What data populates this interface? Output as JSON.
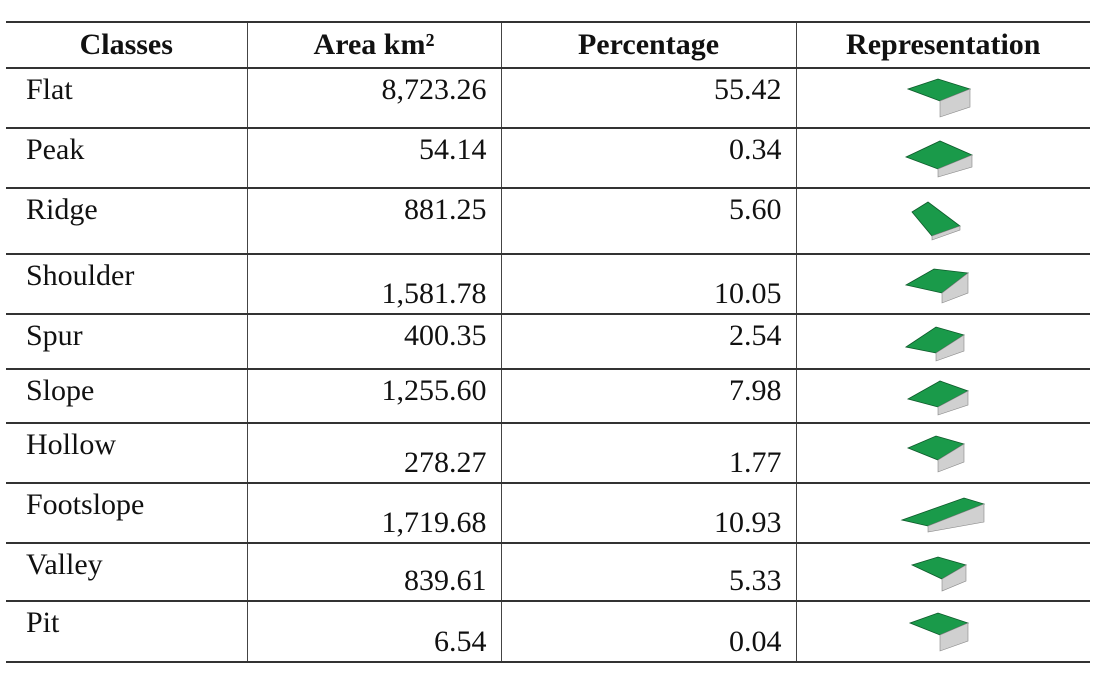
{
  "table": {
    "headers": [
      "Classes",
      "Area km²",
      "Percentage",
      "Representation"
    ],
    "rows": [
      {
        "class": "Flat",
        "area": "8,723.26",
        "percentage": "55.42",
        "icon": "flat-landform-icon"
      },
      {
        "class": "Peak",
        "area": "54.14",
        "percentage": "0.34",
        "icon": "peak-landform-icon"
      },
      {
        "class": "Ridge",
        "area": "881.25",
        "percentage": "5.60",
        "icon": "ridge-landform-icon"
      },
      {
        "class": "Shoulder",
        "area": "1,581.78",
        "percentage": "10.05",
        "icon": "shoulder-landform-icon"
      },
      {
        "class": "Spur",
        "area": "400.35",
        "percentage": "2.54",
        "icon": "spur-landform-icon"
      },
      {
        "class": "Slope",
        "area": "1,255.60",
        "percentage": "7.98",
        "icon": "slope-landform-icon"
      },
      {
        "class": "Hollow",
        "area": "278.27",
        "percentage": "1.77",
        "icon": "hollow-landform-icon"
      },
      {
        "class": "Footslope",
        "area": "1,719.68",
        "percentage": "10.93",
        "icon": "footslope-landform-icon"
      },
      {
        "class": "Valley",
        "area": "839.61",
        "percentage": "5.33",
        "icon": "valley-landform-icon"
      },
      {
        "class": "Pit",
        "area": "6.54",
        "percentage": "0.04",
        "icon": "pit-landform-icon"
      }
    ]
  },
  "colors": {
    "landform_green": "#1a9a4a",
    "landform_side": "#d0d0d0"
  }
}
